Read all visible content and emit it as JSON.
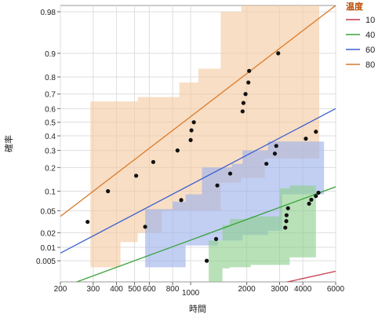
{
  "chart_data": {
    "type": "scatter",
    "subtype": "probability-plot",
    "xlabel": "時間",
    "ylabel": "確率",
    "x_scale": "log",
    "y_scale": "lognormal-probability",
    "xlim": [
      200,
      6000
    ],
    "ylim": [
      0.0015,
      0.985
    ],
    "x_ticks": [
      {
        "value": 200,
        "label": "200"
      },
      {
        "value": 300,
        "label": "300"
      },
      {
        "value": 400,
        "label": "400"
      },
      {
        "value": 500,
        "label": "500"
      },
      {
        "value": 600,
        "label": "600"
      },
      {
        "value": 800,
        "label": "800"
      },
      {
        "value": 1000,
        "label": "1000"
      },
      {
        "value": 2000,
        "label": "2000"
      },
      {
        "value": 3000,
        "label": "3000"
      },
      {
        "value": 4000,
        "label": "4000"
      },
      {
        "value": 6000,
        "label": "6000"
      }
    ],
    "y_ticks": [
      {
        "value": 0.98,
        "label": "0.98"
      },
      {
        "value": 0.9,
        "label": "0.9"
      },
      {
        "value": 0.8,
        "label": "0.8"
      },
      {
        "value": 0.7,
        "label": "0.7"
      },
      {
        "value": 0.6,
        "label": "0.6"
      },
      {
        "value": 0.5,
        "label": "0.5"
      },
      {
        "value": 0.4,
        "label": "0.4"
      },
      {
        "value": 0.3,
        "label": "0.3"
      },
      {
        "value": 0.2,
        "label": "0.2"
      },
      {
        "value": 0.1,
        "label": "0.1"
      },
      {
        "value": 0.05,
        "label": "0.05"
      },
      {
        "value": 0.02,
        "label": "0.02"
      },
      {
        "value": 0.01,
        "label": "0.01"
      },
      {
        "value": 0.005,
        "label": "0.005"
      }
    ],
    "grid": true,
    "legend": {
      "title": "温度",
      "position": "right",
      "entries": [
        {
          "label": "10",
          "color": "#c43c4e"
        },
        {
          "label": "40",
          "color": "#3aa33a"
        },
        {
          "label": "60",
          "color": "#3b5fd0"
        },
        {
          "label": "80",
          "color": "#d97b2b"
        }
      ]
    },
    "series": [
      {
        "name": "10",
        "color": "#c43c4e",
        "fit_line": [
          [
            2900,
            0.0013
          ],
          [
            6000,
            0.0028
          ]
        ],
        "points": [],
        "band": []
      },
      {
        "name": "40",
        "color": "#3aa33a",
        "band_color": "#8ccf8c",
        "fit_line": [
          [
            245,
            0.0015
          ],
          [
            6000,
            0.115
          ]
        ],
        "points": [
          [
            1220,
            0.005
          ],
          [
            1370,
            0.015
          ],
          [
            3220,
            0.025
          ],
          [
            3260,
            0.033
          ],
          [
            3270,
            0.042
          ],
          [
            3330,
            0.055
          ],
          [
            4320,
            0.065
          ],
          [
            4440,
            0.075
          ],
          [
            4700,
            0.085
          ],
          [
            4850,
            0.095
          ]
        ],
        "band": [
          [
            1250,
            0.014,
            0.0015
          ],
          [
            1480,
            0.028,
            0.0033
          ],
          [
            1620,
            0.036,
            0.0035
          ],
          [
            2100,
            0.04,
            0.004
          ],
          [
            3000,
            0.11,
            0.004
          ],
          [
            3400,
            0.12,
            0.006
          ],
          [
            4700,
            0.12,
            0.035
          ]
        ]
      },
      {
        "name": "60",
        "color": "#3b5fd0",
        "band_color": "#9db1ec",
        "fit_line": [
          [
            200,
            0.0075
          ],
          [
            6000,
            0.6
          ]
        ],
        "points": [
          [
            280,
            0.032
          ],
          [
            570,
            0.026
          ],
          [
            890,
            0.074
          ],
          [
            1390,
            0.12
          ],
          [
            1630,
            0.17
          ],
          [
            2550,
            0.22
          ],
          [
            2830,
            0.28
          ],
          [
            2880,
            0.33
          ]
        ],
        "band": [
          [
            570,
            0.053,
            0.0035
          ],
          [
            800,
            0.07,
            0.0035
          ],
          [
            940,
            0.09,
            0.011
          ],
          [
            1150,
            0.2,
            0.011
          ],
          [
            1400,
            0.2,
            0.014
          ],
          [
            1660,
            0.22,
            0.014
          ],
          [
            1900,
            0.3,
            0.018
          ],
          [
            2600,
            0.36,
            0.022
          ],
          [
            3100,
            0.36,
            0.09
          ],
          [
            5200,
            0.36,
            0.09
          ]
        ]
      },
      {
        "name": "80",
        "color": "#d97b2b",
        "band_color": "#f3c99f",
        "fit_line": [
          [
            200,
            0.04
          ],
          [
            6000,
            0.985
          ]
        ],
        "points": [
          [
            360,
            0.1
          ],
          [
            510,
            0.16
          ],
          [
            630,
            0.23
          ],
          [
            850,
            0.3
          ],
          [
            1000,
            0.37
          ],
          [
            1010,
            0.44
          ],
          [
            1040,
            0.5
          ],
          [
            1900,
            0.58
          ],
          [
            1920,
            0.64
          ],
          [
            1970,
            0.7
          ],
          [
            2040,
            0.77
          ],
          [
            2060,
            0.83
          ],
          [
            2950,
            0.9
          ],
          [
            4150,
            0.38
          ],
          [
            4700,
            0.43
          ]
        ],
        "band": [
          [
            290,
            0.65,
            0.0035
          ],
          [
            420,
            0.65,
            0.013
          ],
          [
            520,
            0.68,
            0.02
          ],
          [
            700,
            0.68,
            0.05
          ],
          [
            870,
            0.77,
            0.05
          ],
          [
            1100,
            0.84,
            0.05
          ],
          [
            1450,
            0.98,
            0.13
          ],
          [
            1870,
            0.985,
            0.15
          ],
          [
            2500,
            0.985,
            0.25
          ],
          [
            4900,
            0.985,
            0.25
          ]
        ]
      }
    ]
  }
}
